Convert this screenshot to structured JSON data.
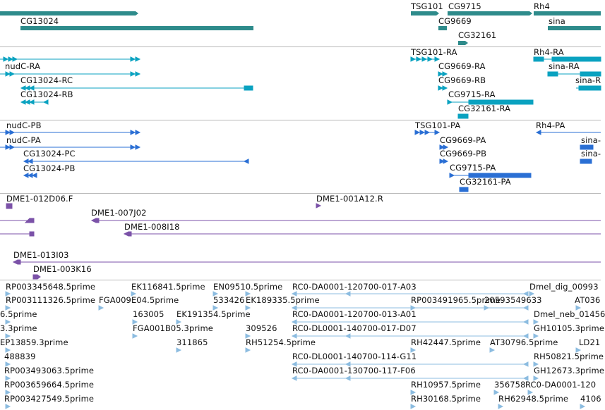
{
  "tracks": {
    "genes": {
      "color": "#2e8b8b",
      "labels": [
        {
          "text": "CG13024"
        },
        {
          "text": "TSG101"
        },
        {
          "text": "CG9715"
        },
        {
          "text": "Rh4"
        },
        {
          "text": "CG9669"
        },
        {
          "text": "sina"
        },
        {
          "text": "CG32161"
        }
      ]
    },
    "transcripts_ra": {
      "color": "#0aa2c0",
      "labels": [
        {
          "text": "nudC-RA"
        },
        {
          "text": "TSG101-RA"
        },
        {
          "text": "Rh4-RA"
        },
        {
          "text": "CG9669-RA"
        },
        {
          "text": "sina-RA"
        },
        {
          "text": "CG13024-RC"
        },
        {
          "text": "CG9669-RB"
        },
        {
          "text": "sina-R"
        },
        {
          "text": "CG13024-RB"
        },
        {
          "text": "CG9715-RA"
        },
        {
          "text": "CG32161-RA"
        }
      ]
    },
    "transcripts_pa": {
      "color": "#2a6fd4",
      "labels": [
        {
          "text": "nudC-PB"
        },
        {
          "text": "TSG101-PA"
        },
        {
          "text": "Rh4-PA"
        },
        {
          "text": "nudC-PA"
        },
        {
          "text": "CG9669-PA"
        },
        {
          "text": "sina-"
        },
        {
          "text": "CG13024-PC"
        },
        {
          "text": "CG9669-PB"
        },
        {
          "text": "sina-"
        },
        {
          "text": "CG13024-PB"
        },
        {
          "text": "CG9715-PA"
        },
        {
          "text": "CG32161-PA"
        }
      ]
    },
    "clones": {
      "color": "#7b52a8",
      "labels": [
        {
          "text": "DME1-012D06.F"
        },
        {
          "text": "DME1-001A12.R"
        },
        {
          "text": "DME1-007J02"
        },
        {
          "text": "DME1-008I18"
        },
        {
          "text": "DME1-013I03"
        },
        {
          "text": "DME1-003K16"
        }
      ]
    },
    "ests": {
      "color": "#8cbce0",
      "labels": [
        {
          "text": "RP003345648.5prime"
        },
        {
          "text": "EK116841.5prime"
        },
        {
          "text": "EN09510.5prime"
        },
        {
          "text": "RC0-DA0001-120700-017-A03"
        },
        {
          "text": "Dmel_dig_00993"
        },
        {
          "text": "RP003111326.5prime"
        },
        {
          "text": "FGA009E04.5prime"
        },
        {
          "text": "533426"
        },
        {
          "text": "EK189335.5prime"
        },
        {
          "text": "RP003491965.5prime"
        },
        {
          "text": "20593549633"
        },
        {
          "text": "AT036"
        },
        {
          "text": "6.5prime"
        },
        {
          "text": "163005"
        },
        {
          "text": "EK191354.5prime"
        },
        {
          "text": "RC0-DA0001-120700-013-A01"
        },
        {
          "text": "Dmel_neb_01456"
        },
        {
          "text": "3.3prime"
        },
        {
          "text": "FGA001B05.3prime"
        },
        {
          "text": "309526"
        },
        {
          "text": "RC0-DL0001-140700-017-D07"
        },
        {
          "text": "GH10105.3prime"
        },
        {
          "text": "EP13859.3prime"
        },
        {
          "text": "311865"
        },
        {
          "text": "RH51254.5prime"
        },
        {
          "text": "RH42447.5prime"
        },
        {
          "text": "AT30796.5prime"
        },
        {
          "text": "LD21"
        },
        {
          "text": "488839"
        },
        {
          "text": "RC0-DL0001-140700-114-G11"
        },
        {
          "text": "RH50821.5prime"
        },
        {
          "text": "RP003493063.5prime"
        },
        {
          "text": "RC0-DA0001-130700-117-F06"
        },
        {
          "text": "GH12673.3prime"
        },
        {
          "text": "RP003659664.5prime"
        },
        {
          "text": "RH10957.5prime"
        },
        {
          "text": "356758"
        },
        {
          "text": "RC0-DA0001-120"
        },
        {
          "text": "RP003427549.5prime"
        },
        {
          "text": "RH30168.5prime"
        },
        {
          "text": "RH62948.5prime"
        },
        {
          "text": "4106"
        }
      ]
    }
  }
}
